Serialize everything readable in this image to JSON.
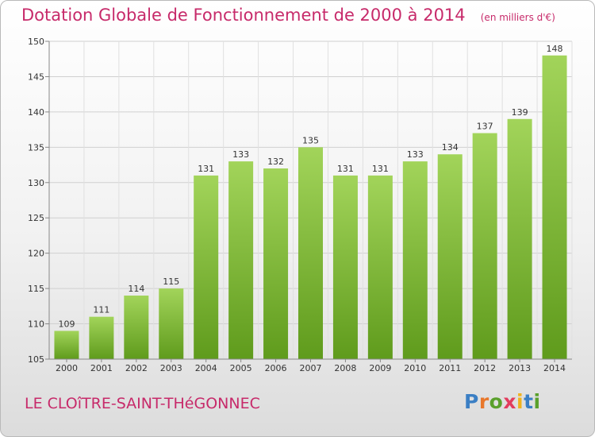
{
  "title": "Dotation Globale de Fonctionnement de 2000 à 2014",
  "unit": "(en milliers d'€)",
  "commune": "LE CLOîTRE-SAINT-THéGONNEC",
  "logo": {
    "p": "P",
    "r": "r",
    "o": "o",
    "x": "x",
    "i1": "i",
    "t": "t",
    "i2": "i"
  },
  "colors": {
    "bar_light": "#a2d45a",
    "bar_dark": "#5f9b1c",
    "title": "#c72a6a"
  },
  "chart_data": {
    "type": "bar",
    "categories": [
      "2000",
      "2001",
      "2002",
      "2003",
      "2004",
      "2005",
      "2006",
      "2007",
      "2008",
      "2009",
      "2010",
      "2011",
      "2012",
      "2013",
      "2014"
    ],
    "values": [
      109,
      111,
      114,
      115,
      131,
      133,
      132,
      135,
      131,
      131,
      133,
      134,
      137,
      139,
      148
    ],
    "ylim": [
      105,
      150
    ],
    "yticks": [
      105,
      110,
      115,
      120,
      125,
      130,
      135,
      140,
      145,
      150
    ],
    "grid": true,
    "xlabel": "",
    "ylabel": ""
  }
}
